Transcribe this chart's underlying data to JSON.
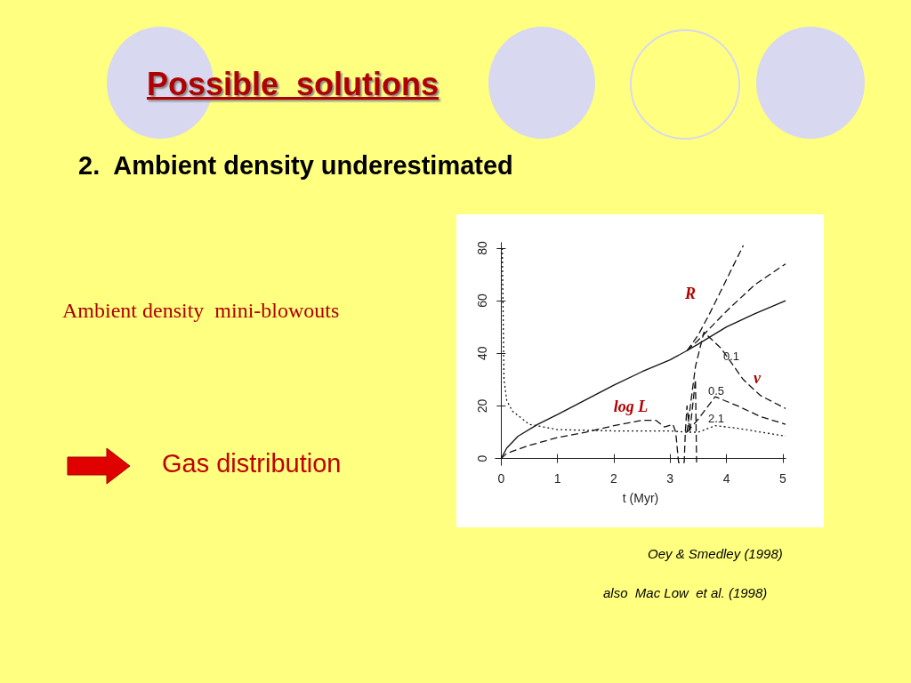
{
  "chart_data": {
    "type": "line",
    "title": "Possible  solutions",
    "subtitle": "2.  Ambient density underestimated",
    "xlabel": "t (Myr)",
    "xlim": [
      -0.1,
      5.05
    ],
    "ylim": [
      -2.5,
      82
    ],
    "xticks": [
      0,
      1,
      2,
      3,
      4,
      5
    ],
    "yticks": [
      0,
      20,
      40,
      60,
      80
    ],
    "grid": false,
    "marker": "none",
    "series": [
      {
        "color": "#111111",
        "line_style": "solid",
        "x": [
          0,
          0.1,
          0.3,
          0.65,
          1,
          1.5,
          2,
          2.5,
          3,
          3.3,
          3.5,
          4,
          4.5,
          5.05
        ],
        "values": [
          0,
          4,
          8.5,
          13,
          16.7,
          22.3,
          27.9,
          33,
          37.5,
          41,
          43.5,
          50,
          55,
          60
        ]
      },
      {
        "color": "#111111",
        "line_style": "dashed",
        "x": [
          3.3,
          3.5,
          3.7,
          4,
          4.3
        ],
        "values": [
          41,
          47,
          55,
          68,
          81
        ]
      },
      {
        "color": "#111111",
        "line_style": "dashed",
        "x": [
          3.3,
          3.5,
          4,
          4.5,
          5.05
        ],
        "values": [
          41,
          45,
          56,
          66,
          74
        ]
      },
      {
        "color": "#111111",
        "line_style": "dashed",
        "x": [
          0,
          0.1,
          0.5,
          1,
          1.5,
          2,
          2.5,
          2.75,
          2.9,
          3.05,
          3.1,
          3.15,
          3.25,
          3.27,
          3.3,
          3.35,
          3.4,
          3.45,
          3.47
        ],
        "values": [
          0,
          2,
          5,
          8,
          10,
          12.5,
          14.5,
          14.5,
          12,
          13,
          10,
          -1.5,
          -1.5,
          10,
          20,
          10,
          20,
          30,
          -1.5
        ]
      },
      {
        "color": "#111111",
        "line_style": "dotted",
        "x": [
          0.02,
          0.05,
          0.1,
          0.2,
          0.5,
          1,
          2,
          3,
          3.3,
          3.5,
          3.8,
          4.2,
          5.05
        ],
        "values": [
          80,
          30,
          22,
          18,
          13,
          11,
          10.5,
          10.5,
          10,
          10,
          12.5,
          11.5,
          8.5
        ]
      },
      {
        "color": "#111111",
        "line_style": "dashed",
        "x": [
          3.3,
          3.45,
          3.6,
          3.9,
          4.3,
          4.6,
          5.05
        ],
        "values": [
          10,
          35,
          48,
          42,
          30,
          24,
          19
        ]
      },
      {
        "color": "#111111",
        "line_style": "dashed",
        "x": [
          3.3,
          3.5,
          3.8,
          4.2,
          4.6,
          5.05
        ],
        "values": [
          10,
          15,
          23.5,
          20,
          16,
          13
        ]
      }
    ],
    "annotations": [
      "R",
      "v",
      "log L",
      "0.1",
      "0.5",
      "2.1",
      "Ambient density  mini-blowouts",
      "Gas distribution",
      "Oey & Smedley (1998)",
      "also  Mac Low  et al. (1998)"
    ]
  }
}
